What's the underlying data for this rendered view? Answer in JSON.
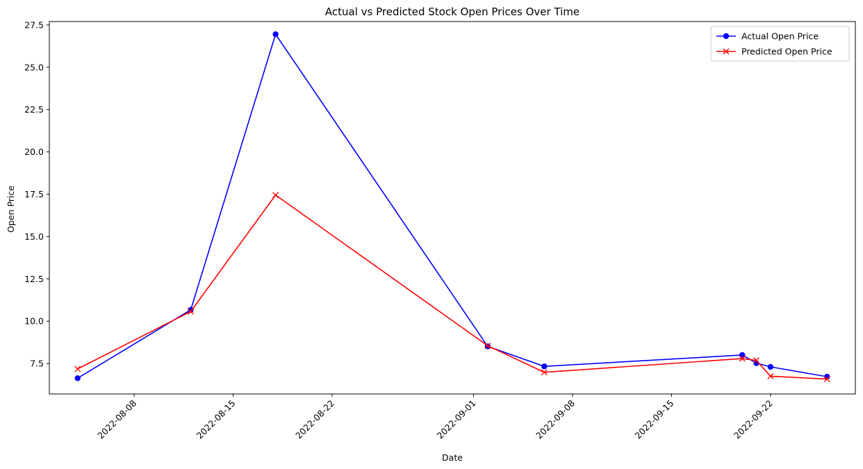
{
  "chart_data": {
    "type": "line",
    "title": "Actual vs Predicted Stock Open Prices Over Time",
    "xlabel": "Date",
    "ylabel": "Open Price",
    "x": [
      "2022-08-04",
      "2022-08-12",
      "2022-08-18",
      "2022-09-02",
      "2022-09-06",
      "2022-09-20",
      "2022-09-21",
      "2022-09-22",
      "2022-09-26"
    ],
    "series": [
      {
        "name": "Actual Open Price",
        "color": "#0000ff",
        "marker": "circle",
        "values": [
          6.63,
          10.67,
          26.95,
          8.51,
          7.33,
          8.0,
          7.52,
          7.3,
          6.72
        ]
      },
      {
        "name": "Predicted Open Price",
        "color": "#ff0000",
        "marker": "x",
        "values": [
          7.18,
          10.57,
          17.45,
          8.55,
          6.98,
          7.79,
          7.68,
          6.75,
          6.58
        ]
      }
    ],
    "xlim": [
      "2022-08-02",
      "2022-09-28"
    ],
    "ylim": [
      5.7,
      27.7
    ],
    "y_ticks": [
      7.5,
      10.0,
      12.5,
      15.0,
      17.5,
      20.0,
      22.5,
      25.0,
      27.5
    ],
    "y_tick_labels": [
      "7.5",
      "10.0",
      "12.5",
      "15.0",
      "17.5",
      "20.0",
      "22.5",
      "25.0",
      "27.5"
    ],
    "x_ticks": [
      "2022-08-08",
      "2022-08-15",
      "2022-08-22",
      "2022-09-01",
      "2022-09-08",
      "2022-09-15",
      "2022-09-22"
    ],
    "x_tick_rotation": 45,
    "grid": false,
    "legend_position": "top-right"
  }
}
